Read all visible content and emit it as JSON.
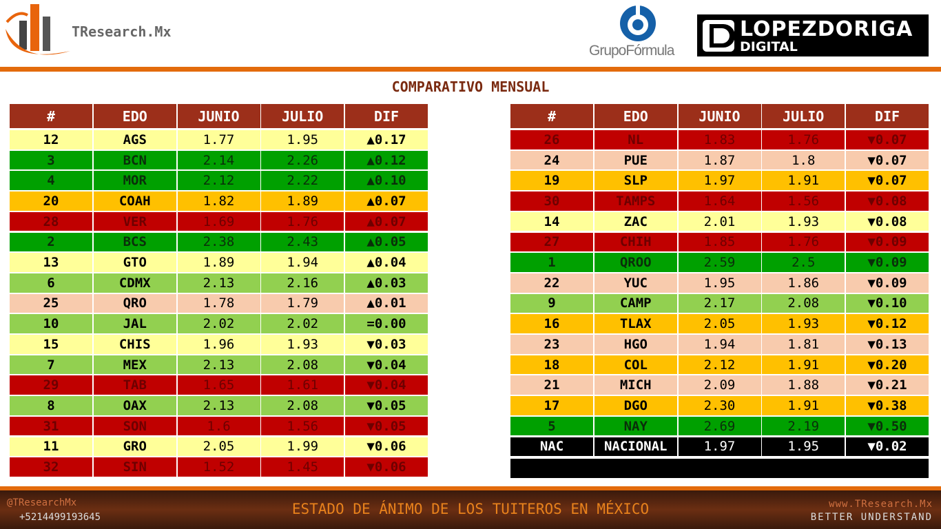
{
  "header": {
    "brand": "TResearch.Mx",
    "partner": "GrupoFórmula",
    "media_line1": "LOPEZDORIGA",
    "media_line2": "DIGITAL"
  },
  "title": "COMPARATIVO MENSUAL",
  "tables": [
    {
      "headers": [
        "#",
        "EDO",
        "JUNIO",
        "JULIO",
        "DIF"
      ],
      "rows": [
        {
          "cells": [
            "12",
            "AGS",
            "1.77",
            "1.95",
            "▲0.17"
          ],
          "color": "#ffff99",
          "text_color": "#000000"
        },
        {
          "cells": [
            "3",
            "BCN",
            "2.14",
            "2.26",
            "▲0.12"
          ],
          "color": "#00a000",
          "text_color": "#0a2e0a"
        },
        {
          "cells": [
            "4",
            "MOR",
            "2.12",
            "2.22",
            "▲0.10"
          ],
          "color": "#00a000",
          "text_color": "#0a2e0a"
        },
        {
          "cells": [
            "20",
            "COAH",
            "1.82",
            "1.89",
            "▲0.07"
          ],
          "color": "#ffc000",
          "text_color": "#000000"
        },
        {
          "cells": [
            "28",
            "VER",
            "1.69",
            "1.76",
            "▲0.07"
          ],
          "color": "#c00000",
          "text_color": "#6e0000"
        },
        {
          "cells": [
            "2",
            "BCS",
            "2.38",
            "2.43",
            "▲0.05"
          ],
          "color": "#00a000",
          "text_color": "#0a2e0a"
        },
        {
          "cells": [
            "13",
            "GTO",
            "1.89",
            "1.94",
            "▲0.04"
          ],
          "color": "#ffff99",
          "text_color": "#000000"
        },
        {
          "cells": [
            "6",
            "CDMX",
            "2.13",
            "2.16",
            "▲0.03"
          ],
          "color": "#92d050",
          "text_color": "#000000"
        },
        {
          "cells": [
            "25",
            "QRO",
            "1.78",
            "1.79",
            "▲0.01"
          ],
          "color": "#f8cbad",
          "text_color": "#000000"
        },
        {
          "cells": [
            "10",
            "JAL",
            "2.02",
            "2.02",
            "=0.00"
          ],
          "color": "#92d050",
          "text_color": "#000000"
        },
        {
          "cells": [
            "15",
            "CHIS",
            "1.96",
            "1.93",
            "▼0.03"
          ],
          "color": "#ffff99",
          "text_color": "#000000"
        },
        {
          "cells": [
            "7",
            "MEX",
            "2.13",
            "2.08",
            "▼0.04"
          ],
          "color": "#92d050",
          "text_color": "#000000"
        },
        {
          "cells": [
            "29",
            "TAB",
            "1.65",
            "1.61",
            "▼0.04"
          ],
          "color": "#c00000",
          "text_color": "#6e0000"
        },
        {
          "cells": [
            "8",
            "OAX",
            "2.13",
            "2.08",
            "▼0.05"
          ],
          "color": "#92d050",
          "text_color": "#000000"
        },
        {
          "cells": [
            "31",
            "SON",
            "1.6",
            "1.56",
            "▼0.05"
          ],
          "color": "#c00000",
          "text_color": "#6e0000"
        },
        {
          "cells": [
            "11",
            "GRO",
            "2.05",
            "1.99",
            "▼0.06"
          ],
          "color": "#ffff99",
          "text_color": "#000000"
        },
        {
          "cells": [
            "32",
            "SIN",
            "1.52",
            "1.45",
            "▼0.06"
          ],
          "color": "#c00000",
          "text_color": "#6e0000"
        }
      ]
    },
    {
      "headers": [
        "#",
        "EDO",
        "JUNIO",
        "JULIO",
        "DIF"
      ],
      "rows": [
        {
          "cells": [
            "26",
            "NL",
            "1.83",
            "1.76",
            "▼0.07"
          ],
          "color": "#c00000",
          "text_color": "#6e0000"
        },
        {
          "cells": [
            "24",
            "PUE",
            "1.87",
            "1.8",
            "▼0.07"
          ],
          "color": "#f8cbad",
          "text_color": "#000000"
        },
        {
          "cells": [
            "19",
            "SLP",
            "1.97",
            "1.91",
            "▼0.07"
          ],
          "color": "#ffc000",
          "text_color": "#000000"
        },
        {
          "cells": [
            "30",
            "TAMPS",
            "1.64",
            "1.56",
            "▼0.08"
          ],
          "color": "#c00000",
          "text_color": "#6e0000"
        },
        {
          "cells": [
            "14",
            "ZAC",
            "2.01",
            "1.93",
            "▼0.08"
          ],
          "color": "#ffff99",
          "text_color": "#000000"
        },
        {
          "cells": [
            "27",
            "CHIH",
            "1.85",
            "1.76",
            "▼0.09"
          ],
          "color": "#c00000",
          "text_color": "#6e0000"
        },
        {
          "cells": [
            "1",
            "QROO",
            "2.59",
            "2.5",
            "▼0.09"
          ],
          "color": "#00a000",
          "text_color": "#0a2e0a"
        },
        {
          "cells": [
            "22",
            "YUC",
            "1.95",
            "1.86",
            "▼0.09"
          ],
          "color": "#f8cbad",
          "text_color": "#000000"
        },
        {
          "cells": [
            "9",
            "CAMP",
            "2.17",
            "2.08",
            "▼0.10"
          ],
          "color": "#92d050",
          "text_color": "#000000"
        },
        {
          "cells": [
            "16",
            "TLAX",
            "2.05",
            "1.93",
            "▼0.12"
          ],
          "color": "#ffc000",
          "text_color": "#000000"
        },
        {
          "cells": [
            "23",
            "HGO",
            "1.94",
            "1.81",
            "▼0.13"
          ],
          "color": "#f8cbad",
          "text_color": "#000000"
        },
        {
          "cells": [
            "18",
            "COL",
            "2.12",
            "1.91",
            "▼0.20"
          ],
          "color": "#ffc000",
          "text_color": "#000000"
        },
        {
          "cells": [
            "21",
            "MICH",
            "2.09",
            "1.88",
            "▼0.21"
          ],
          "color": "#f8cbad",
          "text_color": "#000000"
        },
        {
          "cells": [
            "17",
            "DGO",
            "2.30",
            "1.91",
            "▼0.38"
          ],
          "color": "#ffc000",
          "text_color": "#000000"
        },
        {
          "cells": [
            "5",
            "NAY",
            "2.69",
            "2.19",
            "▼0.50"
          ],
          "color": "#00a000",
          "text_color": "#0a2e0a"
        },
        {
          "cells": [
            "NAC",
            "NACIONAL",
            "1.97",
            "1.95",
            "▼0.02"
          ],
          "color": "#000000",
          "text_color": "#ffffff"
        }
      ]
    }
  ],
  "footer": {
    "handle": "@TResearchMx",
    "phone": "+5214499193645",
    "tagline": "ESTADO DE ÁNIMO DE LOS TUITEROS EN MÉXICO",
    "site": "www.TResearch.Mx",
    "motto": "BETTER UNDERSTAND"
  }
}
